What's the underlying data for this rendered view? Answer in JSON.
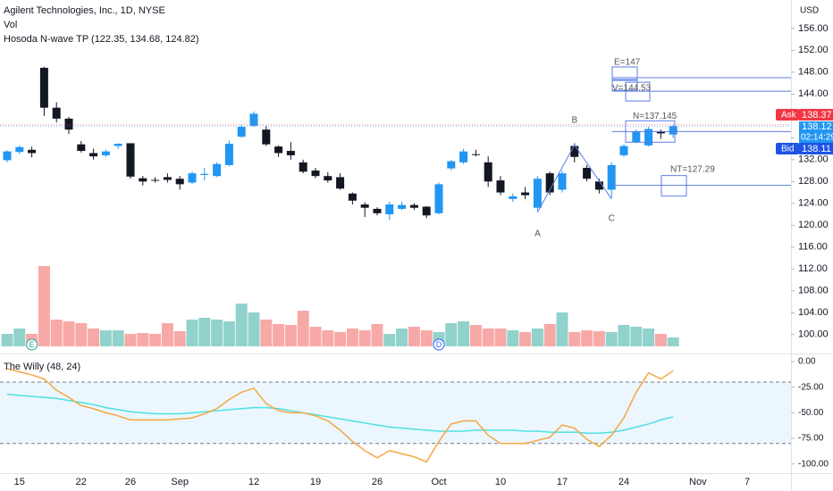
{
  "header": {
    "title": "Agilent Technologies, Inc., 1D, NYSE",
    "volume_label": "Vol",
    "indicator": "Hosoda N-wave TP (122.35, 134.68, 124.82)",
    "currency": "USD",
    "badges": [
      "E",
      "D"
    ],
    "ask": {
      "label": "Ask",
      "value": 138.37,
      "color": "#f23645"
    },
    "last": {
      "value": 138.12,
      "countdown": "02:14:29",
      "color": "#2196f3"
    },
    "bid": {
      "label": "Bid",
      "value": 138.11,
      "color": "#1e53e5"
    }
  },
  "chart_data": [
    {
      "type": "candlestick",
      "categories": [
        null,
        "15",
        null,
        null,
        null,
        null,
        "22",
        null,
        null,
        null,
        "26",
        null,
        null,
        null,
        "Sep",
        null,
        null,
        null,
        null,
        null,
        "12",
        null,
        null,
        null,
        null,
        "19",
        null,
        null,
        null,
        null,
        "26",
        null,
        null,
        null,
        null,
        "Oct",
        null,
        null,
        null,
        null,
        "10",
        null,
        null,
        null,
        null,
        "17",
        null,
        null,
        null,
        null,
        "24",
        null,
        null,
        null,
        null
      ],
      "future_categories": [
        null,
        "Nov",
        null,
        null,
        null,
        "7"
      ],
      "open": [
        131.9,
        133.4,
        133.8,
        148.8,
        141.5,
        139.5,
        134.8,
        133.2,
        132.8,
        134.5,
        135,
        128.6,
        128.3,
        128.8,
        128.5,
        127.8,
        129.2,
        129,
        131,
        136.2,
        138.2,
        137.5,
        134.4,
        133.6,
        131.5,
        130,
        129,
        128.8,
        125.8,
        123.8,
        123,
        122,
        123,
        123.7,
        123.4,
        122.2,
        130.4,
        131.5,
        133,
        131.5,
        128.2,
        124.8,
        126,
        123.2,
        129.5,
        126.5,
        134.5,
        130.5,
        128,
        126.5,
        132.8,
        135.2,
        134.6,
        137.2,
        136.6
      ],
      "high": [
        133.7,
        134.6,
        134.4,
        149,
        142.5,
        139.8,
        135.4,
        134,
        133.8,
        135,
        135,
        129,
        128.8,
        129.5,
        129,
        129.8,
        130.5,
        131.5,
        135.5,
        138.4,
        140.8,
        138.2,
        134.6,
        135.2,
        132,
        130.5,
        129.7,
        129.5,
        126,
        124.2,
        123.3,
        124.3,
        124.3,
        124,
        123.5,
        127.8,
        132,
        134,
        133.8,
        132.6,
        129,
        125.8,
        127,
        129,
        129.8,
        130,
        135,
        131,
        128.5,
        131.5,
        134.8,
        137.5,
        138,
        137.5,
        138.4
      ],
      "low": [
        131.5,
        133,
        132.4,
        140,
        138.8,
        136.7,
        133.3,
        132,
        132.5,
        134,
        128.5,
        127.3,
        127.8,
        127.8,
        126.5,
        127.5,
        128.2,
        128.8,
        130.8,
        136,
        138,
        134.5,
        132.5,
        132,
        129.5,
        128.6,
        127.8,
        126.5,
        123.8,
        121.5,
        121.8,
        121,
        122.8,
        122.8,
        121.3,
        122,
        130,
        131.2,
        132.6,
        127,
        125.5,
        124.3,
        124.8,
        122.6,
        125.5,
        126,
        131.5,
        128,
        125.8,
        125,
        132.5,
        135,
        134.4,
        135.8,
        136
      ],
      "close": [
        133.5,
        134.3,
        133.2,
        141.5,
        139.5,
        137.5,
        133.6,
        132.6,
        133.5,
        134.9,
        128.9,
        128,
        128.2,
        128.3,
        127.5,
        129.5,
        129.4,
        131.2,
        134.9,
        138,
        140.4,
        134.8,
        133.2,
        132.8,
        129.8,
        129,
        128.2,
        126.7,
        124.5,
        123.2,
        122.2,
        123.8,
        123.7,
        123.2,
        121.8,
        127.5,
        131.7,
        133.5,
        133,
        128,
        126,
        125.3,
        125.5,
        128.5,
        126,
        129.5,
        132.5,
        128.5,
        126.5,
        131,
        134.5,
        137.2,
        137.6,
        136.8,
        138.12
      ],
      "up_color": "#2196f3",
      "down_color": "#131722",
      "ylim": [
        96.7,
        161.2
      ],
      "yticks": [
        {
          "value": 100,
          "label": "100.00"
        },
        {
          "value": 104,
          "label": "104.00"
        },
        {
          "value": 108,
          "label": "108.00"
        },
        {
          "value": 112,
          "label": "112.00"
        },
        {
          "value": 116,
          "label": "116.00"
        },
        {
          "value": 120,
          "label": "120.00"
        },
        {
          "value": 124,
          "label": "124.00"
        },
        {
          "value": 128,
          "label": "128.00"
        },
        {
          "value": 132,
          "label": "132.00"
        },
        {
          "value": 136,
          "label": "136.00"
        },
        {
          "value": 140,
          "label": "140.00"
        },
        {
          "value": 144,
          "label": "144.00"
        },
        {
          "value": 148,
          "label": "148.00"
        },
        {
          "value": 152,
          "label": "152.00"
        },
        {
          "value": 156,
          "label": "156.00"
        }
      ],
      "n_wave": {
        "color": "#5b7ee5",
        "points": [
          {
            "label": "A",
            "value": 122.35
          },
          {
            "label": "B",
            "value": 134.68
          },
          {
            "label": "C",
            "value": 124.82
          }
        ],
        "levels": [
          {
            "label": "E=147",
            "value": 147
          },
          {
            "label": "V=144.53",
            "value": 144.53
          },
          {
            "label": "N=137.145",
            "value": 137.145
          },
          {
            "label": "NT=127.29",
            "value": 127.29
          }
        ]
      }
    },
    {
      "type": "bar",
      "values": [
        14,
        20,
        14,
        90,
        30,
        28,
        26,
        20,
        18,
        18,
        14,
        15,
        14,
        26,
        17,
        30,
        32,
        30,
        28,
        48,
        38,
        30,
        25,
        24,
        40,
        22,
        18,
        16,
        20,
        18,
        25,
        14,
        20,
        22,
        18,
        16,
        26,
        28,
        24,
        20,
        20,
        18,
        16,
        20,
        25,
        38,
        16,
        18,
        17,
        16,
        24,
        22,
        20,
        14,
        10
      ],
      "up_color": "#92d2cc",
      "down_color": "#f7a9a7",
      "ylim": [
        0,
        100
      ]
    },
    {
      "type": "line",
      "title": "The Willy (48, 24)",
      "series": [
        {
          "color": "#f5a742",
          "values": [
            -7,
            -10,
            -13,
            -17,
            -28,
            -35,
            -43,
            -46,
            -50,
            -53,
            -57,
            -57,
            -57,
            -57,
            -56,
            -55,
            -51,
            -46,
            -37,
            -30,
            -26,
            -41,
            -48,
            -50,
            -50,
            -53,
            -58,
            -67,
            -78,
            -87,
            -94,
            -87,
            -90,
            -93,
            -98,
            -78,
            -61,
            -58,
            -58,
            -72,
            -80,
            -80,
            -80,
            -77,
            -74,
            -62,
            -65,
            -76,
            -83,
            -72,
            -55,
            -30,
            -11,
            -17,
            -9
          ]
        },
        {
          "color": "#4de1e1",
          "values": [
            -32,
            -33,
            -34,
            -35,
            -36,
            -38,
            -40,
            -42,
            -45,
            -47,
            -49,
            -50,
            -51,
            -51,
            -51,
            -50,
            -49,
            -48,
            -47,
            -46,
            -45,
            -45,
            -46,
            -48,
            -50,
            -52,
            -54,
            -56,
            -58,
            -60,
            -62,
            -64,
            -65,
            -66,
            -67,
            -68,
            -68,
            -68,
            -67,
            -67,
            -67,
            -67,
            -68,
            -68,
            -69,
            -69,
            -69,
            -70,
            -70,
            -69,
            -67,
            -64,
            -61,
            -57,
            -54
          ]
        }
      ],
      "band": [
        -20,
        -80
      ],
      "band_color": "#e3f2fd",
      "ylim": [
        -109,
        7
      ],
      "yticks": [
        {
          "value": 0,
          "label": "0.00"
        },
        {
          "value": -25,
          "label": "-25.00"
        },
        {
          "value": -50,
          "label": "-50.00"
        },
        {
          "value": -75,
          "label": "-75.00"
        },
        {
          "value": -100,
          "label": "-100.00"
        }
      ]
    }
  ]
}
